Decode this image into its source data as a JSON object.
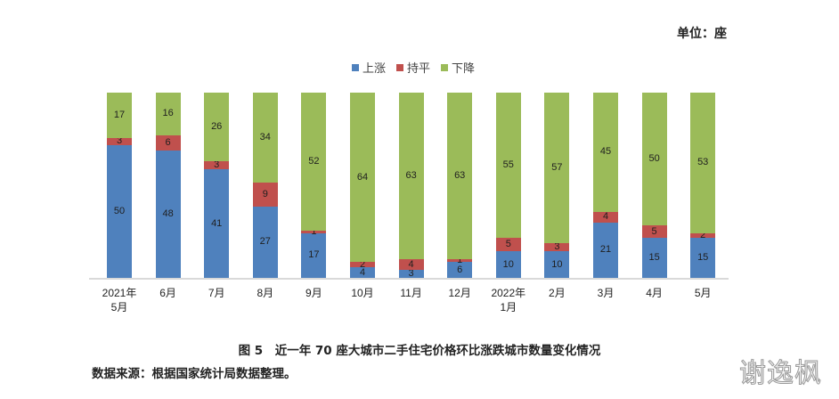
{
  "unit_label": "单位：座",
  "legend": [
    {
      "label": "上涨",
      "color": "#4f81bd"
    },
    {
      "label": "持平",
      "color": "#c0504d"
    },
    {
      "label": "下降",
      "color": "#9bbb59"
    }
  ],
  "caption": "图 5　近一年 70 座大城市二手住宅价格环比涨跌城市数量变化情况",
  "source": "数据来源：根据国家统计局数据整理。",
  "watermark": "谢逸枫",
  "chart_data": {
    "type": "bar",
    "stacked": true,
    "title": "近一年 70 座大城市二手住宅价格环比涨跌城市数量变化情况",
    "xlabel": "",
    "ylabel": "单位：座",
    "ylim": [
      0,
      70
    ],
    "grid": false,
    "legend_position": "top",
    "categories": [
      "2021年\n5月",
      "6月",
      "7月",
      "8月",
      "9月",
      "10月",
      "11月",
      "12月",
      "2022年\n1月",
      "2月",
      "3月",
      "4月",
      "5月"
    ],
    "series": [
      {
        "name": "上涨",
        "color": "#4f81bd",
        "values": [
          50,
          48,
          41,
          27,
          17,
          4,
          3,
          6,
          10,
          10,
          21,
          15,
          15
        ]
      },
      {
        "name": "持平",
        "color": "#c0504d",
        "values": [
          3,
          6,
          3,
          9,
          1,
          2,
          4,
          1,
          5,
          3,
          4,
          5,
          2
        ]
      },
      {
        "name": "下降",
        "color": "#9bbb59",
        "values": [
          17,
          16,
          26,
          34,
          52,
          64,
          63,
          63,
          55,
          57,
          45,
          50,
          53
        ]
      }
    ]
  }
}
